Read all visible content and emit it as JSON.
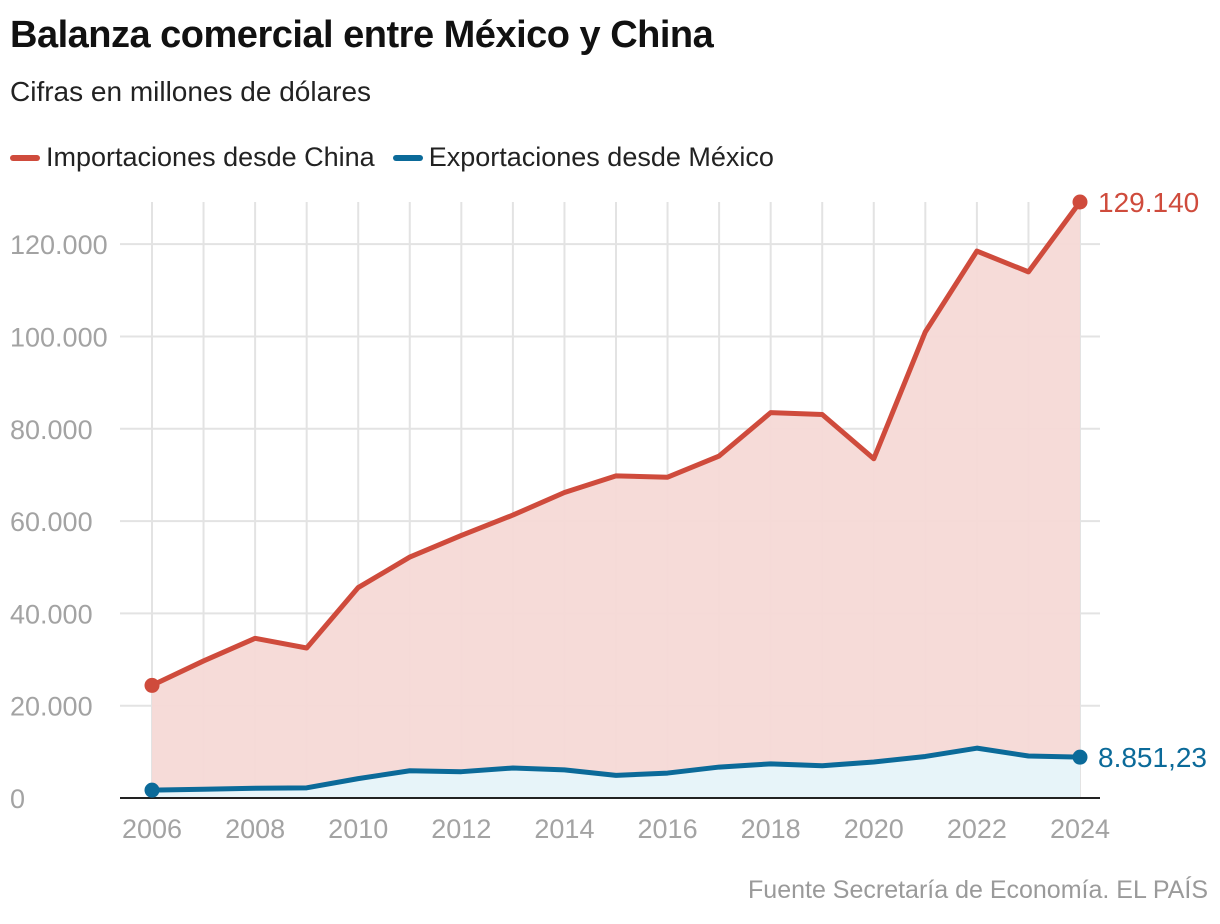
{
  "chart_data": {
    "type": "area",
    "title": "Balanza comercial entre México y China",
    "subtitle": "Cifras en millones de dólares",
    "x": [
      2006,
      2007,
      2008,
      2009,
      2010,
      2011,
      2012,
      2013,
      2014,
      2015,
      2016,
      2017,
      2018,
      2019,
      2020,
      2021,
      2022,
      2023,
      2024
    ],
    "series": [
      {
        "name": "Importaciones desde China",
        "color": "#cf4b3c",
        "fill": "#f5d9d6",
        "values": [
          24400,
          29700,
          34600,
          32500,
          45600,
          52200,
          56900,
          61300,
          66200,
          69800,
          69500,
          74100,
          83500,
          83100,
          73500,
          101000,
          118500,
          114000,
          129140
        ],
        "end_label": "129.140"
      },
      {
        "name": "Exportaciones desde México",
        "color": "#0b6a99",
        "fill": "#e6f5fb",
        "values": [
          1700,
          1900,
          2100,
          2200,
          4200,
          5900,
          5700,
          6500,
          6100,
          4900,
          5400,
          6700,
          7400,
          7000,
          7800,
          9000,
          10800,
          9100,
          8851.23
        ],
        "end_label": "8.851,23"
      }
    ],
    "xlim": [
      2006,
      2024
    ],
    "ylim": [
      0,
      129140
    ],
    "y_ticks": [
      0,
      20000,
      40000,
      60000,
      80000,
      100000,
      120000
    ],
    "y_tick_labels": [
      "0",
      "20.000",
      "40.000",
      "60.000",
      "80.000",
      "100.000",
      "120.000"
    ],
    "x_ticks": [
      2006,
      2008,
      2010,
      2012,
      2014,
      2016,
      2018,
      2020,
      2022,
      2024
    ],
    "x_tick_labels": [
      "2006",
      "2008",
      "2010",
      "2012",
      "2014",
      "2016",
      "2018",
      "2020",
      "2022",
      "2024"
    ],
    "grid": true,
    "legend_position": "top-left",
    "source": "Fuente Secretaría de Economía. EL PAÍS"
  }
}
